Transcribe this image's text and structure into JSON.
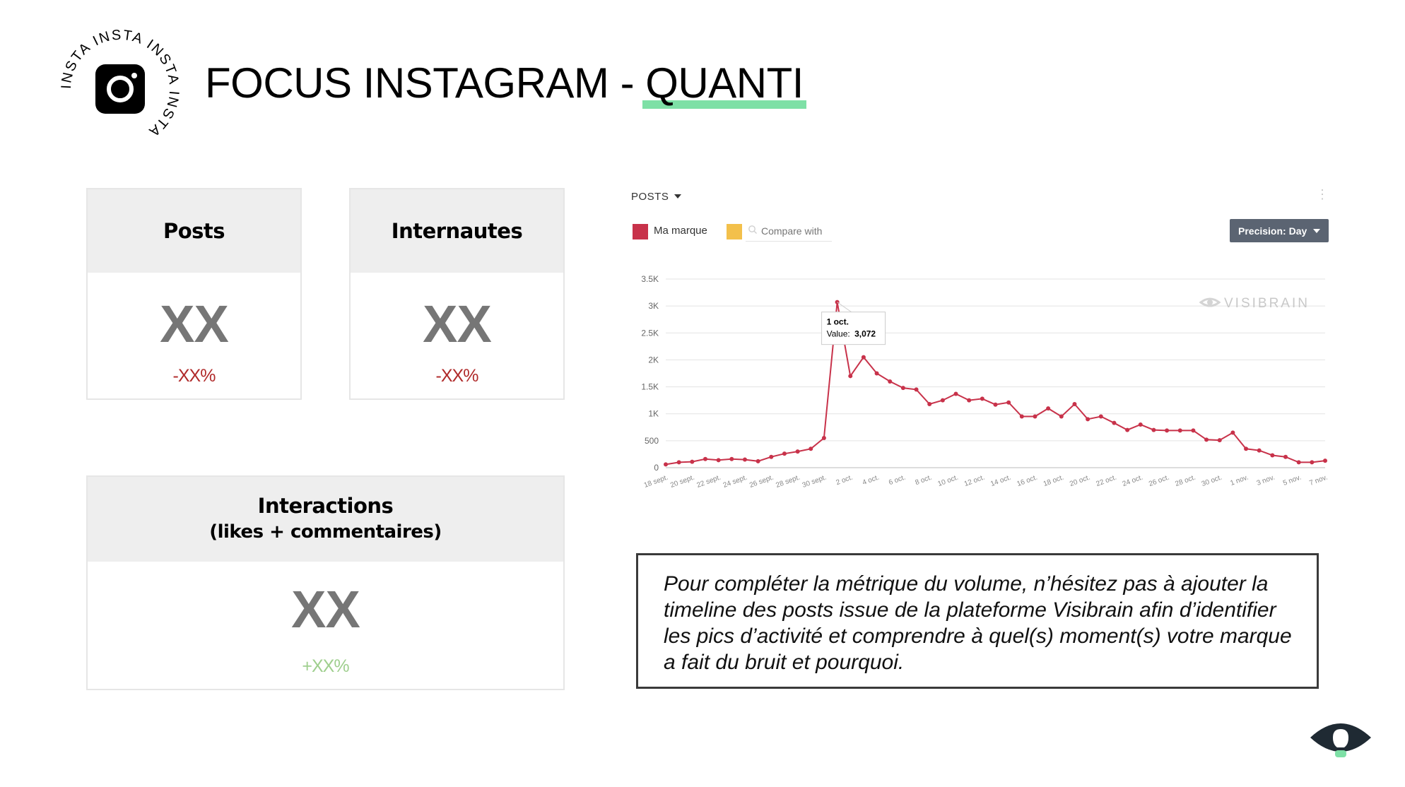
{
  "header": {
    "title_prefix": "FOCUS INSTAGRAM - ",
    "title_highlight": "QUANTI",
    "badge_ring_text": "INSTA INSTA INSTA INSTA ",
    "highlight_color": "#7ee0a6"
  },
  "cards": {
    "posts": {
      "title": "Posts",
      "value": "XX",
      "delta": "-XX%"
    },
    "internautes": {
      "title": "Internautes",
      "value": "XX",
      "delta": "-XX%"
    },
    "interactions": {
      "title_line1": "Interactions",
      "title_line2": "(likes + commentaires)",
      "value": "XX",
      "delta": "+XX%"
    }
  },
  "colors": {
    "negative": "#b02a2a",
    "positive": "#9fcf8e",
    "series": "#c8324a",
    "compare": "#f3c04b"
  },
  "chart_widget": {
    "metric_label": "POSTS",
    "legend_brand": "Ma marque",
    "compare_placeholder": "Compare with",
    "precision_label": "Precision: Day",
    "watermark": "VISIBRAIN",
    "tooltip": {
      "date": "1 oct.",
      "value_label": "Value:",
      "value": "3,072"
    }
  },
  "chart_data": {
    "type": "line",
    "title": "",
    "ylabel": "",
    "xlabel": "",
    "ylim": [
      0,
      3500
    ],
    "yticks": [
      0,
      500,
      1000,
      1500,
      2000,
      2500,
      3000,
      3500
    ],
    "ytick_labels": [
      "0",
      "500",
      "1K",
      "1.5K",
      "2K",
      "2.5K",
      "3K",
      "3.5K"
    ],
    "grid": true,
    "xtick_labels": [
      "18 sept.",
      "20 sept.",
      "22 sept.",
      "24 sept.",
      "26 sept.",
      "28 sept.",
      "30 sept.",
      "2 oct.",
      "4 oct.",
      "6 oct.",
      "8 oct.",
      "10 oct.",
      "12 oct.",
      "14 oct.",
      "16 oct.",
      "18 oct.",
      "20 oct.",
      "22 oct.",
      "24 oct.",
      "26 oct.",
      "28 oct.",
      "30 oct.",
      "1 nov.",
      "3 nov.",
      "5 nov.",
      "7 nov."
    ],
    "series": [
      {
        "name": "Ma marque",
        "values": [
          60,
          100,
          110,
          160,
          140,
          160,
          150,
          120,
          200,
          260,
          300,
          350,
          550,
          3072,
          1700,
          2050,
          1750,
          1600,
          1480,
          1450,
          1180,
          1250,
          1370,
          1250,
          1280,
          1170,
          1210,
          950,
          950,
          1100,
          950,
          1180,
          900,
          950,
          830,
          700,
          800,
          700,
          690,
          690,
          690,
          520,
          510,
          650,
          350,
          320,
          230,
          200,
          100,
          100,
          130
        ]
      }
    ]
  }
}
